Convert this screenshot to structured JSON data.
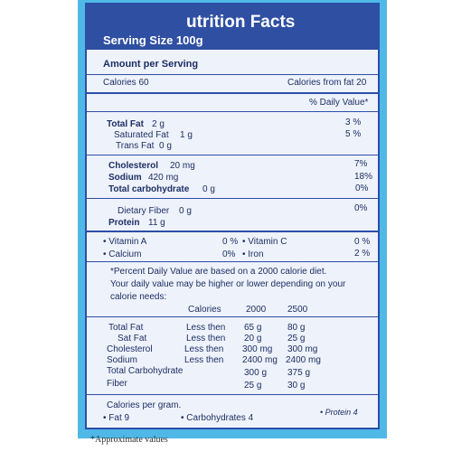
{
  "label": {
    "title": "utrition Facts",
    "serving_size": "Serving Size 100g",
    "amount_per_serving": "Amount per Serving",
    "calories": "Calories 60",
    "calories_from_fat": "Calories from fat 20",
    "daily_value_header": "% Daily Value*"
  },
  "nutrients": [
    {
      "name": "Total Fat",
      "amount": "2 g",
      "dv": "3 %"
    },
    {
      "name": "Saturated Fat",
      "amount": "1 g",
      "dv": "5 %"
    },
    {
      "name": "Trans Fat",
      "amount": "0 g",
      "dv": ""
    },
    {
      "name": "Cholesterol",
      "amount": "20 mg",
      "dv": "7%"
    },
    {
      "name": "Sodium",
      "amount": "420 mg",
      "dv": "18%"
    },
    {
      "name": "Total carbohydrate",
      "amount": "0 g",
      "dv": "0%"
    },
    {
      "name": "Dietary Fiber",
      "amount": "0 g",
      "dv": "0%"
    },
    {
      "name": "Protein",
      "amount": "11 g",
      "dv": ""
    }
  ],
  "vitamins": [
    {
      "name": "• Vitamin A",
      "dv": "0 %"
    },
    {
      "name": "• Vitamin C",
      "dv": "0 %"
    },
    {
      "name": "• Calcium",
      "dv": "0%"
    },
    {
      "name": "• Iron",
      "dv": "2 %"
    }
  ],
  "footnote_text": [
    "*Percent Daily Value are based on a 2000 calorie diet.",
    "Your daily value may be higher or lower depending on your",
    "calorie needs:"
  ],
  "reference_table": {
    "headers": [
      "Calories",
      "2000",
      "2500"
    ],
    "rows": [
      {
        "name": "Total Fat",
        "qual": "Less then",
        "v2000": "65 g",
        "v2500": "80 g"
      },
      {
        "name": "Sat Fat",
        "qual": "Less then",
        "v2000": "20 g",
        "v2500": "25 g"
      },
      {
        "name": "Cholesterol",
        "qual": "Less then",
        "v2000": "300 mg",
        "v2500": "300 mg"
      },
      {
        "name": "Sodium",
        "qual": "Less then",
        "v2000": "2400 mg",
        "v2500": "2400 mg"
      },
      {
        "name": "Total Carbohydrate",
        "qual": "",
        "v2000": "300 g",
        "v2500": "375 g"
      },
      {
        "name": "Fiber",
        "qual": "",
        "v2000": "25 g",
        "v2500": "30 g"
      }
    ]
  },
  "calories_per_gram": {
    "title": "Calories per gram.",
    "fat": "• Fat 9",
    "carbohydrates": "• Carbohydrates 4",
    "protein": "• Protein 4"
  },
  "approximate_note": "*Approximate values",
  "colors": {
    "navy": "#2f4fa3",
    "text": "#1e2e63",
    "panel": "#eef3fb",
    "background_blue": "#4fb8e6"
  }
}
